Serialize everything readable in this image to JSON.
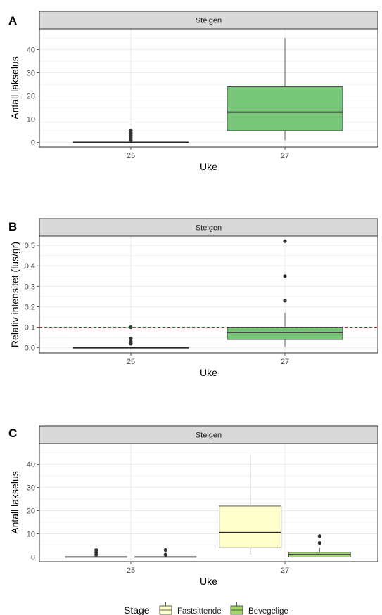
{
  "colors": {
    "panel_border": "#333333",
    "strip_fill": "#d9d9d9",
    "grid": "#ebebeb",
    "green_box": "#78c679",
    "yellow_box": "#ffffcc",
    "threshold_line": "#cc0000",
    "point": "#333333"
  },
  "legend": {
    "title": "Stage",
    "items": [
      {
        "label": "Fastsittende",
        "color": "#ffffcc"
      },
      {
        "label": "Bevegelige",
        "color": "#a1d76a"
      }
    ]
  },
  "chart_data": [
    {
      "type": "box",
      "panel_tag": "A",
      "strip": "Steigen",
      "xlabel": "Uke",
      "ylabel": "Antall lakselus",
      "categories": [
        "25",
        "27"
      ],
      "ylim": [
        -2,
        49
      ],
      "yticks": [
        0,
        10,
        20,
        30,
        40
      ],
      "ytick_labels": [
        "0",
        "10",
        "20",
        "30",
        "40"
      ],
      "grid": true,
      "series": [
        {
          "color": "#78c679",
          "boxes": [
            {
              "category": "25",
              "min": 0,
              "q1": 0,
              "median": 0,
              "q3": 0,
              "max": 0,
              "outliers": [
                1,
                2,
                3,
                4,
                5
              ]
            },
            {
              "category": "27",
              "min": 1,
              "q1": 5,
              "median": 13,
              "q3": 24,
              "max": 45,
              "outliers": []
            }
          ]
        }
      ]
    },
    {
      "type": "box",
      "panel_tag": "B",
      "strip": "Steigen",
      "xlabel": "Uke",
      "ylabel": "Relativ intensitet (lus/gr)",
      "categories": [
        "25",
        "27"
      ],
      "ylim": [
        -0.025,
        0.545
      ],
      "yticks": [
        0,
        0.1,
        0.2,
        0.3,
        0.4,
        0.5
      ],
      "ytick_labels": [
        "0.0",
        "0.1",
        "0.2",
        "0.3",
        "0.4",
        "0.5"
      ],
      "grid": true,
      "hline": 0.1,
      "series": [
        {
          "color": "#78c679",
          "boxes": [
            {
              "category": "25",
              "min": 0,
              "q1": 0,
              "median": 0,
              "q3": 0,
              "max": 0,
              "outliers": [
                0.02,
                0.03,
                0.045,
                0.1
              ]
            },
            {
              "category": "27",
              "min": 0.005,
              "q1": 0.04,
              "median": 0.075,
              "q3": 0.1,
              "max": 0.17,
              "outliers": [
                0.23,
                0.35,
                0.52
              ]
            }
          ]
        }
      ]
    },
    {
      "type": "box",
      "panel_tag": "C",
      "strip": "Steigen",
      "xlabel": "Uke",
      "ylabel": "Antall lakselus",
      "categories": [
        "25",
        "27"
      ],
      "ylim": [
        -2,
        49
      ],
      "yticks": [
        0,
        10,
        20,
        30,
        40
      ],
      "ytick_labels": [
        "0",
        "10",
        "20",
        "30",
        "40"
      ],
      "grid": true,
      "series": [
        {
          "name": "Fastsittende",
          "color": "#ffffcc",
          "boxes": [
            {
              "category": "25",
              "min": 0,
              "q1": 0,
              "median": 0,
              "q3": 0,
              "max": 0,
              "outliers": [
                1,
                2,
                3
              ]
            },
            {
              "category": "27",
              "min": 1,
              "q1": 4,
              "median": 10.5,
              "q3": 22,
              "max": 44,
              "outliers": []
            }
          ]
        },
        {
          "name": "Bevegelige",
          "color": "#a1d76a",
          "boxes": [
            {
              "category": "25",
              "min": 0,
              "q1": 0,
              "median": 0,
              "q3": 0,
              "max": 0,
              "outliers": [
                1,
                3
              ]
            },
            {
              "category": "27",
              "min": 0,
              "q1": 0,
              "median": 1,
              "q3": 2,
              "max": 4,
              "outliers": [
                6,
                9
              ]
            }
          ]
        }
      ]
    }
  ]
}
